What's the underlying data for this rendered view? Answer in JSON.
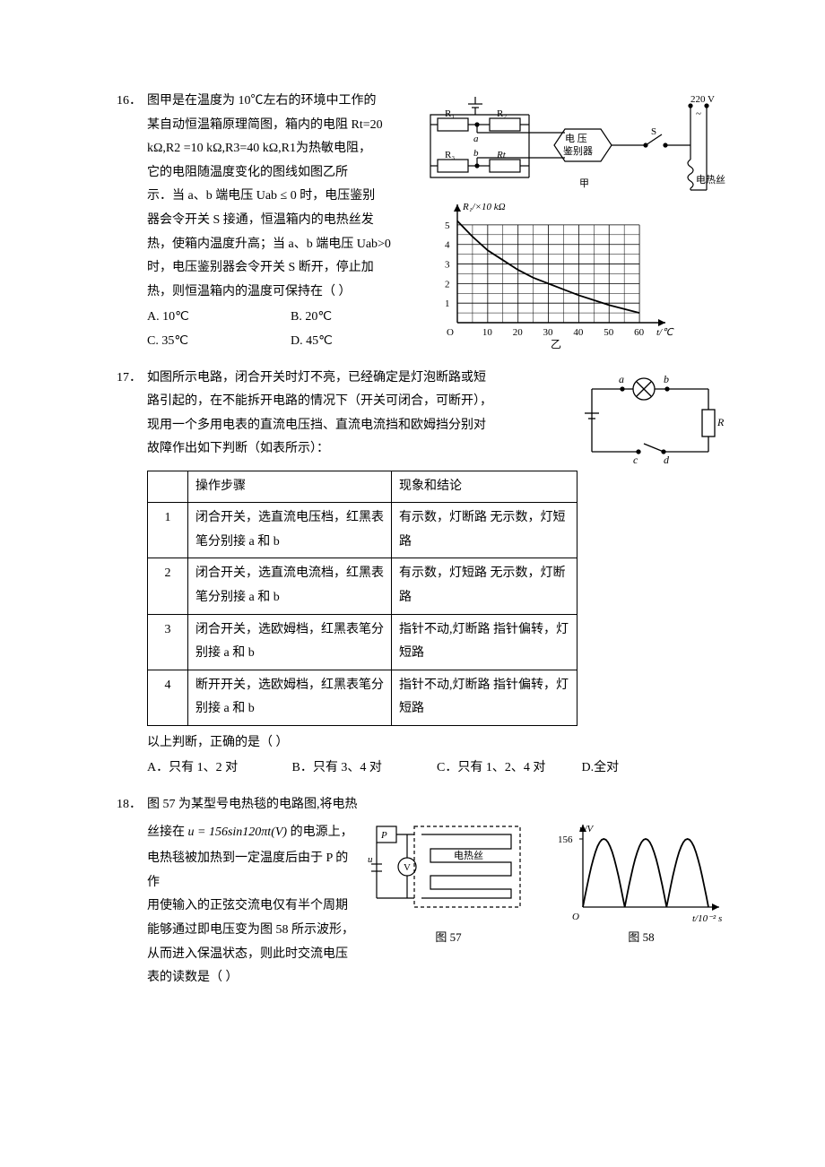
{
  "q16": {
    "num": "16．",
    "lines": [
      "图甲是在温度为 10℃左右的环境中工作的",
      "某自动恒温箱原理简图，箱内的电阻 Rt=20",
      "kΩ,R2 =10 kΩ,R3=40 kΩ,R1为热敏电阻，",
      "它的电阻随温度变化的图线如图乙所",
      "示．当 a、b 端电压 Uab ≤ 0 时，电压鉴别",
      "器会令开关 S 接通，恒温箱内的电热丝发",
      "热，使箱内温度升高；当 a、b 端电压 Uab>0",
      "时，电压鉴别器会令开关 S 断开，停止加",
      "热，则恒温箱内的温度可保持在（   ）"
    ],
    "opts": {
      "A": "A. 10℃",
      "B": "B. 20℃",
      "C": "C. 35℃",
      "D": "D. 45℃"
    },
    "circuit": {
      "R1": "R₁",
      "R2": "R₂",
      "R3": "R₃",
      "Rt": "Rt",
      "a": "a",
      "b": "b",
      "box": "电 压\n鉴别器",
      "S": "S",
      "volt": "220 V",
      "tilde": "~",
      "heater": "电热丝",
      "cap": "甲"
    },
    "graph": {
      "ylabel": "R₁/×10 kΩ",
      "xlabel": "t/℃",
      "cap": "乙",
      "xticks": [
        "10",
        "20",
        "30",
        "40",
        "50",
        "60"
      ],
      "yticks": [
        "1",
        "2",
        "3",
        "4",
        "5"
      ],
      "xlim": [
        0,
        65
      ],
      "ylim": [
        0,
        5.5
      ],
      "curve": [
        [
          0,
          5.2
        ],
        [
          5,
          4.4
        ],
        [
          10,
          3.7
        ],
        [
          15,
          3.2
        ],
        [
          20,
          2.7
        ],
        [
          25,
          2.3
        ],
        [
          30,
          2.0
        ],
        [
          35,
          1.7
        ],
        [
          40,
          1.4
        ],
        [
          45,
          1.15
        ],
        [
          50,
          0.9
        ],
        [
          55,
          0.7
        ],
        [
          60,
          0.5
        ]
      ],
      "grid_color": "#000",
      "curve_color": "#000"
    }
  },
  "q17": {
    "num": "17．",
    "lines": [
      "如图所示电路，闭合开关时灯不亮，已经确定是灯泡断路或短",
      "路引起的，在不能拆开电路的情况下（开关可闭合，可断开），",
      "现用一个多用电表的直流电压挡、直流电流挡和欧姆挡分别对",
      "故障作出如下判断（如表所示）："
    ],
    "table": {
      "head": [
        "",
        "操作步骤",
        "现象和结论"
      ],
      "rows": [
        [
          "1",
          "闭合开关，选直流电压档，红黑表笔分别接 a 和 b",
          "有示数，灯断路 无示数，灯短路"
        ],
        [
          "2",
          "闭合开关，选直流电流档，红黑表笔分别接 a 和 b",
          "有示数，灯短路 无示数，灯断路"
        ],
        [
          "3",
          "闭合开关，选欧姆档，红黑表笔分别接 a 和 b",
          "指针不动,灯断路 指针偏转，灯短路"
        ],
        [
          "4",
          "断开开关，选欧姆档，红黑表笔分别接 a 和 b",
          "指针不动,灯断路 指针偏转，灯短路"
        ]
      ],
      "col_widths": [
        "28px",
        "210px",
        "190px"
      ]
    },
    "after": "以上判断，正确的是（   ）",
    "opts": {
      "A": "A．只有 1、2 对",
      "B": "B．只有 3、4 对",
      "C": "C．只有 1、2、4 对",
      "D": "D.全对"
    },
    "circuit": {
      "a": "a",
      "b": "b",
      "c": "c",
      "d": "d",
      "R": "R"
    }
  },
  "q18": {
    "num": "18．",
    "title_line": "图 57 为某型号电热毯的电路图,将电热",
    "lines": [
      "丝接在",
      "的电源上，",
      "电热毯被加热到一定温度后由于 P 的作",
      "用使输入的正弦交流电仅有半个周期",
      "能够通过即电压变为图 58 所示波形，",
      "从而进入保温状态，则此时交流电压",
      "表的读数是（  ）"
    ],
    "formula": "u = 156sin120πt(V)",
    "fig57": {
      "P": "P",
      "u": "u",
      "V": "V",
      "heater": "电热丝",
      "cap": "图 57"
    },
    "fig58": {
      "ylabel": "u/V",
      "ypeak": "156",
      "xlabel": "t/10⁻² s",
      "O": "O",
      "cap": "图 58",
      "peak": 156,
      "periods": 2.5,
      "color": "#000"
    }
  }
}
